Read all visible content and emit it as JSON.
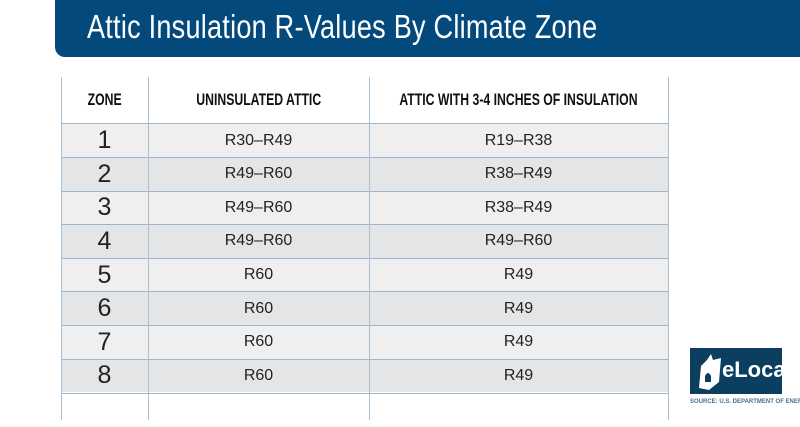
{
  "title": "Attic Insulation R-Values By Climate Zone",
  "chart_data": {
    "type": "table",
    "title": "Attic Insulation R-Values By Climate Zone",
    "columns": [
      "ZONE",
      "UNINSULATED ATTIC",
      "ATTIC WITH 3-4 INCHES OF INSULATION"
    ],
    "rows": [
      [
        "1",
        "R30–R49",
        "R19–R38"
      ],
      [
        "2",
        "R49–R60",
        "R38–R49"
      ],
      [
        "3",
        "R49–R60",
        "R38–R49"
      ],
      [
        "4",
        "R49–R60",
        "R49–R60"
      ],
      [
        "5",
        "R60",
        "R49"
      ],
      [
        "6",
        "R60",
        "R49"
      ],
      [
        "7",
        "R60",
        "R49"
      ],
      [
        "8",
        "R60",
        "R49"
      ]
    ]
  },
  "logo": {
    "text": "eLocal"
  },
  "source": "SOURCE: U.S. DEPARTMENT OF ENERGY",
  "colors": {
    "banner": "#03497b",
    "logo_bg": "#0b3e5f",
    "row_light": "#efefef",
    "row_dark": "#e4e5e7"
  }
}
